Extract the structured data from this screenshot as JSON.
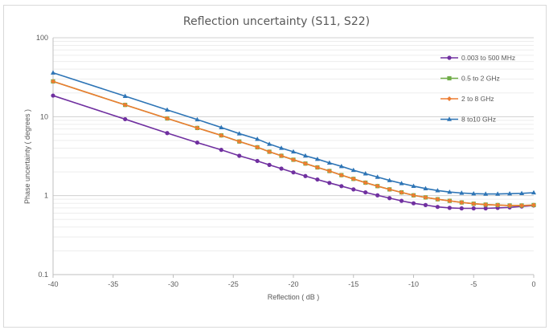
{
  "chart_data": {
    "type": "line",
    "title": "Reflection uncertainty (S11, S22)",
    "xlabel": "Reflection ( dB )",
    "ylabel": "Phase uncertainty ( degrees )",
    "xlim": [
      -40,
      0
    ],
    "ylim": [
      0.1,
      100
    ],
    "yscale": "log",
    "xticks": [
      -40,
      -35,
      -30,
      -25,
      -20,
      -15,
      -10,
      -5,
      0
    ],
    "yticks": [
      0.1,
      1,
      10,
      100
    ],
    "ytick_labels": [
      "0.1",
      "1",
      "10",
      "100"
    ],
    "grid": true,
    "legend_position": "top-right",
    "x": [
      -40,
      -34,
      -30.5,
      -28,
      -26,
      -24.5,
      -23,
      -22,
      -21,
      -20,
      -19,
      -18,
      -17,
      -16,
      -15,
      -14,
      -13,
      -12,
      -11,
      -10,
      -9,
      -8,
      -7,
      -6,
      -5,
      -4,
      -3,
      -2,
      -1,
      0
    ],
    "series": [
      {
        "name": "0.003 to 500 MHz",
        "color": "#7030a0",
        "marker": "circle",
        "values": [
          18.5,
          9.3,
          6.2,
          4.7,
          3.8,
          3.2,
          2.75,
          2.45,
          2.2,
          1.97,
          1.77,
          1.6,
          1.45,
          1.32,
          1.2,
          1.1,
          1.01,
          0.93,
          0.86,
          0.8,
          0.76,
          0.72,
          0.7,
          0.69,
          0.69,
          0.69,
          0.7,
          0.71,
          0.73,
          0.75
        ]
      },
      {
        "name": "0.5 to 2 GHz",
        "color": "#70ad47",
        "marker": "square",
        "values": [
          28,
          14.1,
          9.5,
          7.2,
          5.8,
          4.85,
          4.1,
          3.6,
          3.2,
          2.85,
          2.55,
          2.28,
          2.05,
          1.82,
          1.63,
          1.46,
          1.32,
          1.2,
          1.1,
          1.01,
          0.95,
          0.9,
          0.86,
          0.82,
          0.79,
          0.77,
          0.76,
          0.75,
          0.75,
          0.76
        ]
      },
      {
        "name": "2 to 8 GHz",
        "color": "#ed7d31",
        "marker": "diamond",
        "values": [
          28,
          14.1,
          9.5,
          7.2,
          5.8,
          4.85,
          4.1,
          3.6,
          3.2,
          2.85,
          2.55,
          2.28,
          2.05,
          1.82,
          1.63,
          1.46,
          1.32,
          1.2,
          1.1,
          1.01,
          0.95,
          0.9,
          0.86,
          0.82,
          0.79,
          0.77,
          0.76,
          0.75,
          0.75,
          0.76
        ]
      },
      {
        "name": "8 to10 GHz",
        "color": "#2e75b6",
        "marker": "triangle",
        "values": [
          36,
          18.2,
          12.2,
          9.2,
          7.3,
          6.1,
          5.2,
          4.5,
          4.0,
          3.6,
          3.2,
          2.9,
          2.6,
          2.35,
          2.1,
          1.9,
          1.72,
          1.56,
          1.43,
          1.32,
          1.23,
          1.16,
          1.11,
          1.08,
          1.06,
          1.05,
          1.05,
          1.06,
          1.07,
          1.09
        ]
      }
    ]
  }
}
